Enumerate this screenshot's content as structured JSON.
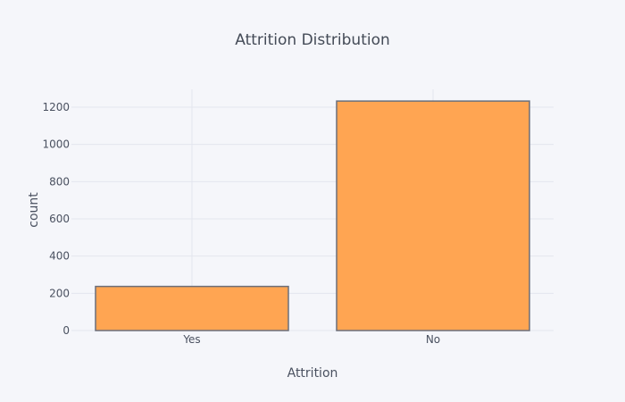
{
  "chart_data": {
    "type": "bar",
    "title": "Attrition Distribution",
    "xlabel": "Attrition",
    "ylabel": "count",
    "categories": [
      "Yes",
      "No"
    ],
    "values": [
      237,
      1233
    ],
    "ylim": [
      0,
      1300
    ],
    "yticks": [
      0,
      200,
      400,
      600,
      800,
      1000,
      1200
    ],
    "grid": true,
    "bar_color": "#ffa552",
    "bar_outline_color": "#6b6f7a",
    "background_color": "#f5f6fa"
  }
}
